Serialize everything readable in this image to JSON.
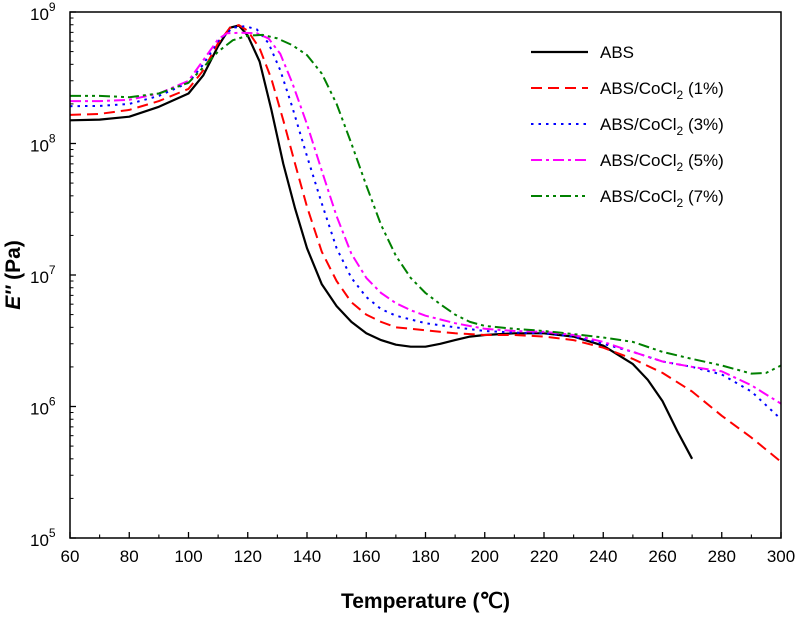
{
  "chart_data": {
    "type": "line",
    "title": "",
    "xlabel": "Temperature (℃)",
    "ylabel": "E'' (Pa)",
    "ylabel_parts": {
      "italic": "E''",
      "rest": " (Pa)"
    },
    "xlim": [
      60,
      300
    ],
    "ylim": [
      100000,
      1000000000
    ],
    "yscale": "log",
    "x_ticks": [
      60,
      80,
      100,
      120,
      140,
      160,
      180,
      200,
      220,
      240,
      260,
      280,
      300
    ],
    "y_ticks": [
      {
        "value": 100000,
        "base": "10",
        "exp": "5"
      },
      {
        "value": 1000000,
        "base": "10",
        "exp": "6"
      },
      {
        "value": 10000000,
        "base": "10",
        "exp": "7"
      },
      {
        "value": 100000000,
        "base": "10",
        "exp": "8"
      },
      {
        "value": 1000000000,
        "base": "10",
        "exp": "9"
      }
    ],
    "grid": false,
    "legend_position": "top-right",
    "series": [
      {
        "name": "ABS",
        "label_main": "ABS",
        "label_sub": "",
        "label_tail": "",
        "color": "#000000",
        "dash": "solid",
        "points": [
          [
            60,
            150000000.0
          ],
          [
            70,
            152000000.0
          ],
          [
            80,
            160000000.0
          ],
          [
            90,
            190000000.0
          ],
          [
            100,
            240000000.0
          ],
          [
            105,
            330000000.0
          ],
          [
            110,
            550000000.0
          ],
          [
            114,
            760000000.0
          ],
          [
            117,
            790000000.0
          ],
          [
            120,
            660000000.0
          ],
          [
            124,
            420000000.0
          ],
          [
            128,
            180000000.0
          ],
          [
            132,
            70000000.0
          ],
          [
            136,
            32000000.0
          ],
          [
            140,
            16000000.0
          ],
          [
            145,
            8500000.0
          ],
          [
            150,
            5800000.0
          ],
          [
            155,
            4400000.0
          ],
          [
            160,
            3600000.0
          ],
          [
            165,
            3200000.0
          ],
          [
            170,
            2950000.0
          ],
          [
            175,
            2850000.0
          ],
          [
            180,
            2850000.0
          ],
          [
            185,
            3000000.0
          ],
          [
            190,
            3200000.0
          ],
          [
            195,
            3400000.0
          ],
          [
            200,
            3500000.0
          ],
          [
            210,
            3600000.0
          ],
          [
            220,
            3600000.0
          ],
          [
            230,
            3400000.0
          ],
          [
            240,
            2900000.0
          ],
          [
            250,
            2100000.0
          ],
          [
            255,
            1600000.0
          ],
          [
            260,
            1100000.0
          ],
          [
            265,
            650000.0
          ],
          [
            270,
            400000.0
          ]
        ]
      },
      {
        "name": "ABS/CoCl2 (1%)",
        "label_main": "ABS/CoCl",
        "label_sub": "2",
        "label_tail": " (1%)",
        "color": "#ff0000",
        "dash": "dashed",
        "points": [
          [
            60,
            165000000.0
          ],
          [
            70,
            168000000.0
          ],
          [
            80,
            180000000.0
          ],
          [
            90,
            210000000.0
          ],
          [
            100,
            260000000.0
          ],
          [
            105,
            360000000.0
          ],
          [
            110,
            580000000.0
          ],
          [
            114,
            760000000.0
          ],
          [
            117,
            795000000.0
          ],
          [
            120,
            720000000.0
          ],
          [
            124,
            530000000.0
          ],
          [
            128,
            310000000.0
          ],
          [
            132,
            150000000.0
          ],
          [
            136,
            70000000.0
          ],
          [
            140,
            33000000.0
          ],
          [
            145,
            15000000.0
          ],
          [
            150,
            9000000.0
          ],
          [
            155,
            6200000.0
          ],
          [
            160,
            5000000.0
          ],
          [
            165,
            4400000.0
          ],
          [
            170,
            4000000.0
          ],
          [
            180,
            3800000.0
          ],
          [
            190,
            3600000.0
          ],
          [
            200,
            3500000.0
          ],
          [
            210,
            3500000.0
          ],
          [
            220,
            3400000.0
          ],
          [
            230,
            3200000.0
          ],
          [
            240,
            2800000.0
          ],
          [
            250,
            2300000.0
          ],
          [
            260,
            1800000.0
          ],
          [
            270,
            1300000.0
          ],
          [
            280,
            850000.0
          ],
          [
            290,
            580000.0
          ],
          [
            300,
            380000.0
          ]
        ]
      },
      {
        "name": "ABS/CoCl2 (3%)",
        "label_main": "ABS/CoCl",
        "label_sub": "2",
        "label_tail": " (3%)",
        "color": "#0000ff",
        "dash": "dotted",
        "points": [
          [
            60,
            192000000.0
          ],
          [
            70,
            193000000.0
          ],
          [
            80,
            200000000.0
          ],
          [
            90,
            230000000.0
          ],
          [
            100,
            290000000.0
          ],
          [
            105,
            400000000.0
          ],
          [
            110,
            600000000.0
          ],
          [
            115,
            760000000.0
          ],
          [
            119,
            780000000.0
          ],
          [
            123,
            740000000.0
          ],
          [
            127,
            580000000.0
          ],
          [
            131,
            360000000.0
          ],
          [
            135,
            190000000.0
          ],
          [
            140,
            80000000.0
          ],
          [
            145,
            35000000.0
          ],
          [
            150,
            16000000.0
          ],
          [
            155,
            9500000.0
          ],
          [
            160,
            6800000.0
          ],
          [
            165,
            5500000.0
          ],
          [
            170,
            4900000.0
          ],
          [
            180,
            4300000.0
          ],
          [
            190,
            4000000.0
          ],
          [
            200,
            3750000.0
          ],
          [
            210,
            3650000.0
          ],
          [
            220,
            3600000.0
          ],
          [
            230,
            3400000.0
          ],
          [
            240,
            3000000.0
          ],
          [
            250,
            2600000.0
          ],
          [
            260,
            2200000.0
          ],
          [
            270,
            2000000.0
          ],
          [
            280,
            1750000.0
          ],
          [
            290,
            1300000.0
          ],
          [
            300,
            800000.0
          ]
        ]
      },
      {
        "name": "ABS/CoCl2 (5%)",
        "label_main": "ABS/CoCl",
        "label_sub": "2",
        "label_tail": " (5%)",
        "color": "#ff00ff",
        "dash": "dashdot",
        "points": [
          [
            60,
            210000000.0
          ],
          [
            70,
            210000000.0
          ],
          [
            80,
            215000000.0
          ],
          [
            90,
            240000000.0
          ],
          [
            100,
            300000000.0
          ],
          [
            105,
            430000000.0
          ],
          [
            110,
            620000000.0
          ],
          [
            113,
            690000000.0
          ],
          [
            118,
            695000000.0
          ],
          [
            123,
            690000000.0
          ],
          [
            127,
            630000000.0
          ],
          [
            131,
            480000000.0
          ],
          [
            135,
            290000000.0
          ],
          [
            140,
            140000000.0
          ],
          [
            145,
            62000000.0
          ],
          [
            150,
            28000000.0
          ],
          [
            155,
            14500000.0
          ],
          [
            160,
            9500000.0
          ],
          [
            165,
            7300000.0
          ],
          [
            170,
            6100000.0
          ],
          [
            175,
            5400000.0
          ],
          [
            180,
            4900000.0
          ],
          [
            190,
            4300000.0
          ],
          [
            200,
            3900000.0
          ],
          [
            210,
            3750000.0
          ],
          [
            220,
            3700000.0
          ],
          [
            230,
            3500000.0
          ],
          [
            240,
            3100000.0
          ],
          [
            250,
            2600000.0
          ],
          [
            260,
            2200000.0
          ],
          [
            270,
            2000000.0
          ],
          [
            280,
            1850000.0
          ],
          [
            290,
            1450000.0
          ],
          [
            300,
            1050000.0
          ]
        ]
      },
      {
        "name": "ABS/CoCl2 (7%)",
        "label_main": "ABS/CoCl",
        "label_sub": "2",
        "label_tail": " (7%)",
        "color": "#008000",
        "dash": "dashdotdot",
        "points": [
          [
            60,
            230000000.0
          ],
          [
            70,
            230000000.0
          ],
          [
            80,
            225000000.0
          ],
          [
            90,
            240000000.0
          ],
          [
            100,
            290000000.0
          ],
          [
            105,
            380000000.0
          ],
          [
            110,
            500000000.0
          ],
          [
            115,
            610000000.0
          ],
          [
            120,
            660000000.0
          ],
          [
            125,
            670000000.0
          ],
          [
            130,
            630000000.0
          ],
          [
            135,
            560000000.0
          ],
          [
            140,
            470000000.0
          ],
          [
            145,
            340000000.0
          ],
          [
            150,
            200000000.0
          ],
          [
            155,
            100000000.0
          ],
          [
            160,
            48000000.0
          ],
          [
            165,
            24000000.0
          ],
          [
            170,
            14000000.0
          ],
          [
            175,
            9500000.0
          ],
          [
            180,
            7300000.0
          ],
          [
            185,
            6000000.0
          ],
          [
            190,
            5000000.0
          ],
          [
            195,
            4400000.0
          ],
          [
            200,
            4100000.0
          ],
          [
            210,
            3900000.0
          ],
          [
            220,
            3750000.0
          ],
          [
            230,
            3550000.0
          ],
          [
            240,
            3350000.0
          ],
          [
            250,
            3100000.0
          ],
          [
            260,
            2600000.0
          ],
          [
            270,
            2300000.0
          ],
          [
            280,
            2050000.0
          ],
          [
            290,
            1780000.0
          ],
          [
            295,
            1800000.0
          ],
          [
            300,
            2050000.0
          ]
        ]
      }
    ]
  }
}
